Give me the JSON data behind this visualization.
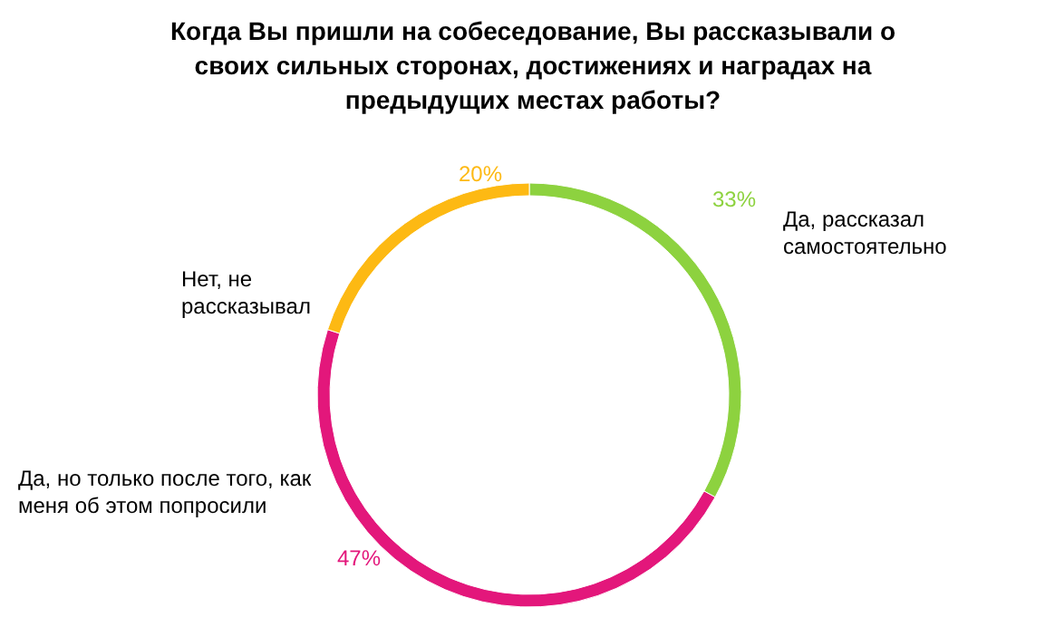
{
  "chart_data": {
    "type": "donut",
    "title": "Когда Вы пришли на собеседование, Вы рассказывали о своих сильных сторонах, достижениях и наградах на предыдущих местах работы?",
    "categories": [
      "Да, рассказал самостоятельно",
      "Да, но только после того, как меня об этом попросили",
      "Нет, не рассказывал"
    ],
    "values": [
      33,
      47,
      20
    ],
    "colors": [
      "#8dd23f",
      "#e3177b",
      "#fdb913"
    ],
    "value_labels": [
      "33%",
      "47%",
      "20%"
    ]
  }
}
